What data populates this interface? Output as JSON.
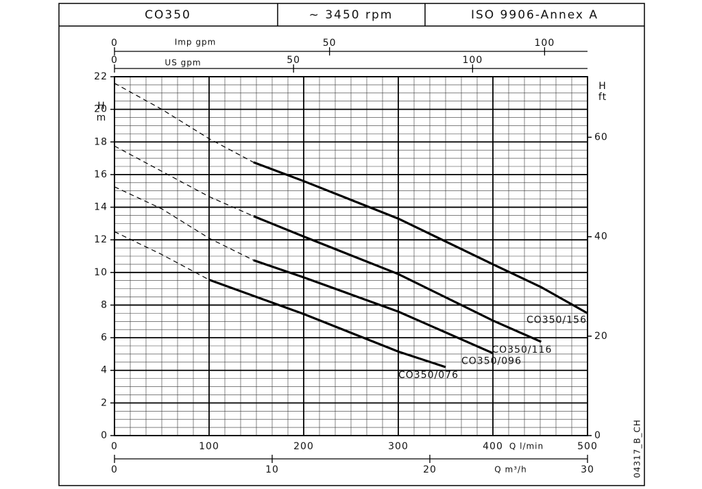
{
  "header": {
    "model": "CO350",
    "speed": "~ 3450 rpm",
    "standard": "ISO 9906-Annex A"
  },
  "chart_data": {
    "type": "line",
    "xlim": [
      0,
      500
    ],
    "xticks": [
      0,
      100,
      200,
      300,
      400,
      500
    ],
    "x_label": "Q l/min",
    "ylim": [
      0,
      22
    ],
    "yticks": [
      0,
      2,
      4,
      6,
      8,
      10,
      12,
      14,
      16,
      18,
      20,
      22
    ],
    "y_label": "H",
    "y_unit": "m",
    "y2lim": [
      0,
      72.18
    ],
    "y2ticks": [
      0,
      20,
      40,
      60
    ],
    "y2_label": "H",
    "y2_unit": "ft",
    "secondary_x_axes": [
      {
        "label": "Imp gpm",
        "lim": [
          0,
          109.98
        ],
        "ticks": [
          0,
          50,
          100
        ]
      },
      {
        "label": "US gpm",
        "lim": [
          0,
          132.09
        ],
        "ticks": [
          0,
          50,
          100
        ]
      },
      {
        "label": "Q m³/h",
        "lim": [
          0,
          30
        ],
        "ticks": [
          0,
          10,
          20,
          30
        ]
      }
    ],
    "grid": true,
    "minor_grid_step": {
      "x": 16.6667,
      "y": 0.5
    },
    "series": [
      {
        "name": "CO350/156",
        "color": "#000000",
        "dashed_x": [
          0,
          50,
          100,
          147
        ],
        "dashed_values": [
          21.6,
          20.0,
          18.2,
          16.75
        ],
        "x": [
          147,
          200,
          300,
          400,
          451,
          500
        ],
        "values": [
          16.75,
          15.6,
          13.3,
          10.5,
          9.1,
          7.5
        ]
      },
      {
        "name": "CO350/116",
        "color": "#000000",
        "dashed_x": [
          0,
          50,
          100,
          147
        ],
        "dashed_values": [
          17.75,
          16.2,
          14.65,
          13.45
        ],
        "x": [
          147,
          200,
          300,
          400,
          451
        ],
        "values": [
          13.45,
          12.2,
          9.9,
          7.05,
          5.75
        ]
      },
      {
        "name": "CO350/096",
        "color": "#000000",
        "dashed_x": [
          0,
          50,
          100,
          147
        ],
        "dashed_values": [
          15.25,
          13.9,
          12.1,
          10.75
        ],
        "x": [
          147,
          200,
          300,
          400
        ],
        "values": [
          10.75,
          9.7,
          7.6,
          5.05
        ]
      },
      {
        "name": "CO350/076",
        "color": "#000000",
        "dashed_x": [
          0,
          50,
          100
        ],
        "dashed_values": [
          12.5,
          11.1,
          9.55
        ],
        "x": [
          100,
          200,
          300,
          350
        ],
        "values": [
          9.55,
          7.45,
          5.15,
          4.2
        ]
      }
    ],
    "drawing_code": "04317_B_CH"
  }
}
